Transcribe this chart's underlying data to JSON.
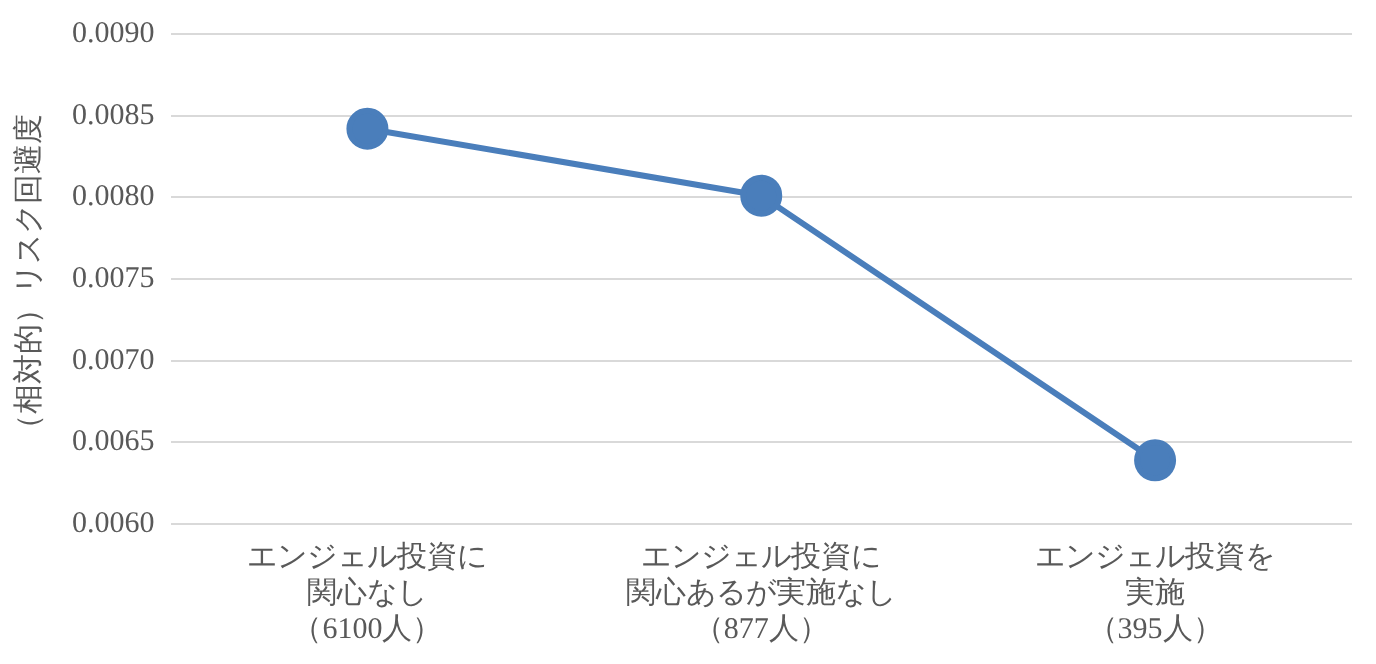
{
  "chart_data": {
    "type": "line",
    "ylabel": "（相対的）リスク回避度",
    "categories": [
      "エンジェル投資に関心なし（6100人）",
      "エンジェル投資に関心あるが実施なし（877人）",
      "エンジェル投資を実施（395人）"
    ],
    "series": [
      {
        "color": "#4a7ebb",
        "values": [
          0.00842,
          0.00801,
          0.00639
        ]
      }
    ],
    "ylim": [
      0.006,
      0.009
    ],
    "yticks": [
      {
        "value": 0.006,
        "label": "0.0060"
      },
      {
        "value": 0.0065,
        "label": "0.0065"
      },
      {
        "value": 0.007,
        "label": "0.0070"
      },
      {
        "value": 0.0075,
        "label": "0.0075"
      },
      {
        "value": 0.008,
        "label": "0.0080"
      },
      {
        "value": 0.0085,
        "label": "0.0085"
      },
      {
        "value": 0.009,
        "label": "0.0090"
      }
    ],
    "grid": "y",
    "legend": false,
    "marker": "circle",
    "line_style": "solid"
  }
}
